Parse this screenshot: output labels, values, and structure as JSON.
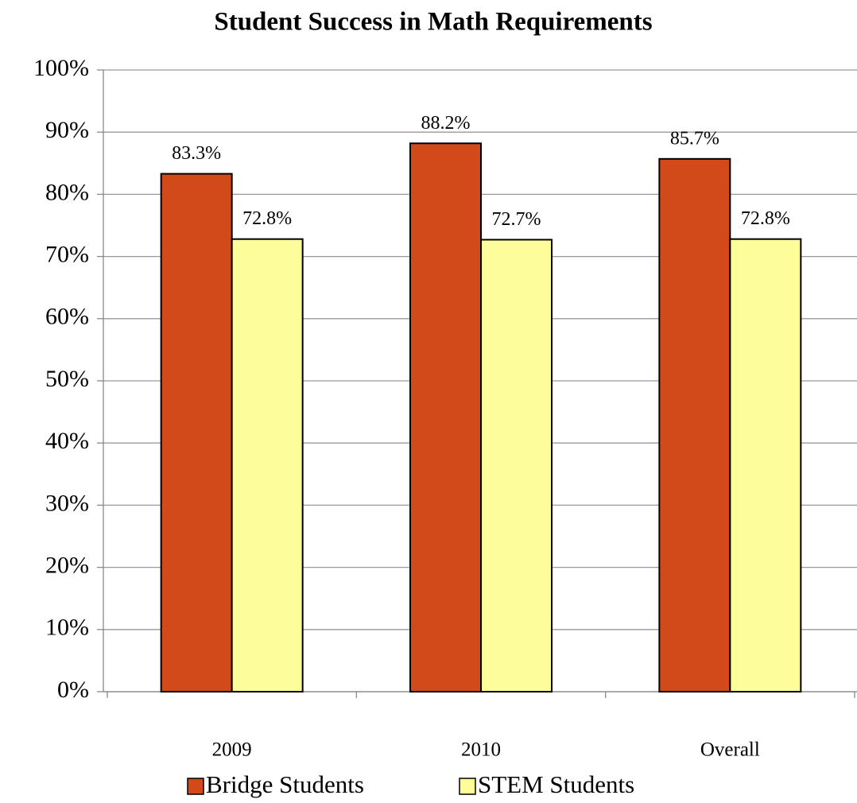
{
  "chart_data": {
    "type": "bar",
    "title": "Student Success in Math Requirements",
    "categories": [
      "2009",
      "2010",
      "Overall"
    ],
    "series": [
      {
        "name": "Bridge Students",
        "color": "#d24a1a",
        "values": [
          83.3,
          88.2,
          85.7
        ],
        "value_labels": [
          "83.3%",
          "88.2%",
          "85.7%"
        ]
      },
      {
        "name": "STEM Students",
        "color": "#fdfd9a",
        "values": [
          72.8,
          72.7,
          72.8
        ],
        "value_labels": [
          "72.8%",
          "72.7%",
          "72.8%"
        ]
      }
    ],
    "ylim": [
      0,
      100
    ],
    "yticks": [
      {
        "value": 0,
        "label": "0%"
      },
      {
        "value": 10,
        "label": "10%"
      },
      {
        "value": 20,
        "label": "20%"
      },
      {
        "value": 30,
        "label": "30%"
      },
      {
        "value": 40,
        "label": "40%"
      },
      {
        "value": 50,
        "label": "50%"
      },
      {
        "value": 60,
        "label": "60%"
      },
      {
        "value": 70,
        "label": "70%"
      },
      {
        "value": 80,
        "label": "80%"
      },
      {
        "value": 90,
        "label": "90%"
      },
      {
        "value": 100,
        "label": "100%"
      }
    ],
    "grid": true,
    "legend": "bottom"
  }
}
